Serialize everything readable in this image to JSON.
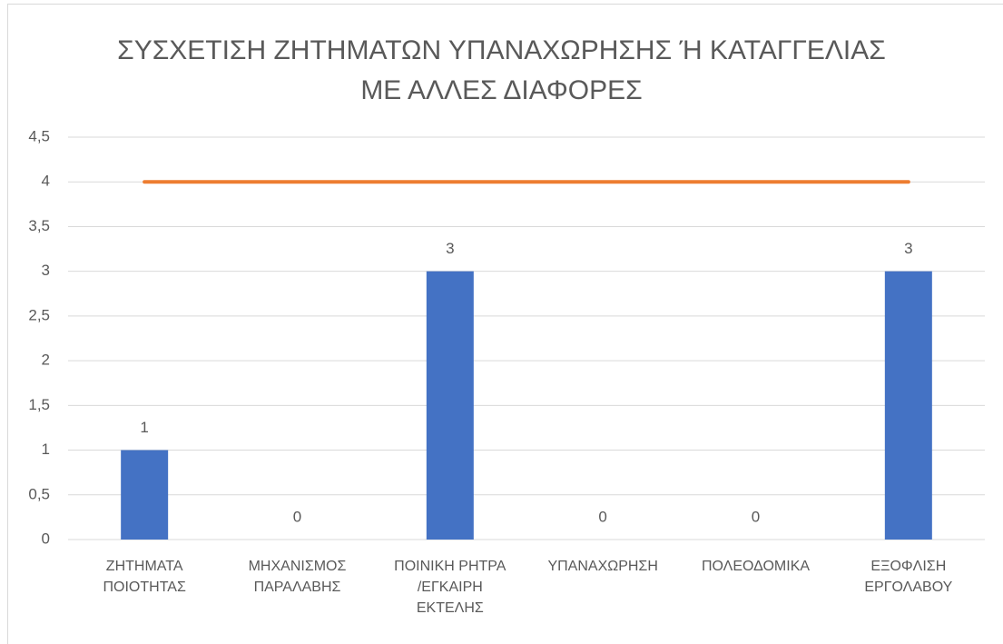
{
  "chart_data": {
    "type": "bar",
    "title": "ΣΥΣΧΕΤΙΣΗ ΖΗΤΗΜΑΤΩΝ ΥΠΑΝΑΧΩΡΗΣΗΣ Ή ΚΑΤΑΓΓΕΛΙΑΣ\nΜΕ ΑΛΛΕΣ ΔΙΑΦΟΡΕΣ",
    "categories": [
      "ΖΗΤΗΜΑΤΑ\nΠΟΙΟΤΗΤΑΣ",
      "ΜΗΧΑΝΙΣΜΟΣ\nΠΑΡΑΛΑΒΗΣ",
      "ΠΟΙΝΙΚΗ ΡΗΤΡΑ\n/ΕΓΚΑΙΡΗ\nΕΚΤΕΛΗΣ",
      "ΥΠΑΝΑΧΩΡΗΣΗ",
      "ΠΟΛΕΟΔΟΜΙΚΑ",
      "ΕΞΟΦΛΙΣΗ\nΕΡΓΟΛΑΒΟΥ"
    ],
    "series": [
      {
        "type": "bar",
        "color": "#4472c4",
        "values": [
          1,
          0,
          3,
          0,
          0,
          3
        ],
        "data_labels": true
      },
      {
        "type": "line",
        "color": "#ed7d31",
        "values": [
          4,
          4,
          4,
          4,
          4,
          4
        ],
        "data_labels": false
      }
    ],
    "ylim": [
      0,
      4.5
    ],
    "yticks": [
      0,
      {
        "value": 0.5,
        "label": "0,5"
      },
      1,
      {
        "value": 1.5,
        "label": "1,5"
      },
      2,
      {
        "value": 2.5,
        "label": "2,5"
      },
      3,
      {
        "value": 3.5,
        "label": "3,5"
      },
      4,
      {
        "value": 4.5,
        "label": "4,5"
      }
    ],
    "grid": true
  }
}
